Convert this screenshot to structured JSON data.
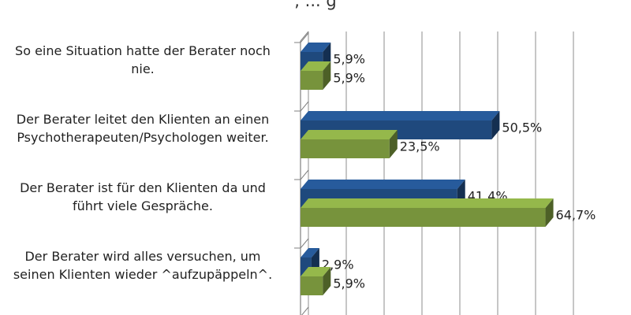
{
  "chart_data": {
    "type": "bar",
    "orientation": "horizontal",
    "style": "3d",
    "title": ", ... g",
    "categories": [
      "So eine Situation hatte der Berater noch nie.",
      "Der Berater leitet den Klienten an einen Psychotherapeuten/Psychologen weiter.",
      "Der Berater ist für den Klienten da und führt viele Gespräche.",
      "Der Berater wird alles versuchen, um seinen Klienten wieder ^aufzupäppeln^."
    ],
    "category_lines": [
      [
        "So eine Situation hatte der Berater noch",
        "nie."
      ],
      [
        "Der Berater leitet den Klienten an einen",
        "Psychotherapeuten/Psychologen weiter."
      ],
      [
        "Der Berater ist für den Klienten da und",
        "führt viele Gespräche."
      ],
      [
        "Der Berater wird alles versuchen, um",
        "seinen Klienten wieder ^aufzupäppeln^."
      ]
    ],
    "series": [
      {
        "color": "#1F497D",
        "values": [
          5.9,
          50.5,
          41.4,
          2.9
        ],
        "labels": [
          "5,9%",
          "50,5%",
          "41,4%",
          "2,9%"
        ]
      },
      {
        "color": "#77933C",
        "values": [
          5.9,
          23.5,
          64.7,
          5.9
        ],
        "labels": [
          "5,9%",
          "23,5%",
          "64,7%",
          "5,9%"
        ]
      }
    ],
    "xlim": [
      0,
      70
    ],
    "grid": true,
    "legend": "none"
  }
}
